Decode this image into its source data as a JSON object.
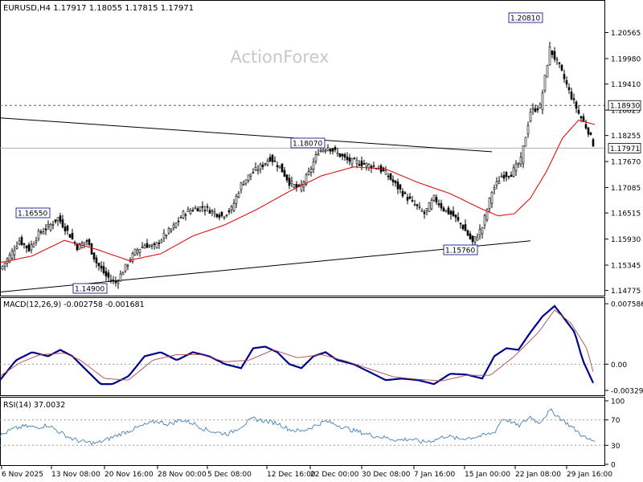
{
  "chart_data": [
    {
      "type": "candlestick",
      "header": "EURUSD,H4  1.17917 1.18055 1.17815 1.17971",
      "watermark": "ActionForex",
      "x_tick_labels": [
        "6 Nov 2025",
        "13 Nov 08:00",
        "20 Nov 16:00",
        "28 Nov 00:00",
        "5 Dec 08:00",
        "12 Dec 16:00",
        "22 Dec 00:00",
        "30 Dec 08:00",
        "7 Jan 16:00",
        "15 Jan 00:00",
        "22 Jan 08:00",
        "29 Jan 16:00"
      ],
      "y_tick_labels": [
        "1.20565",
        "1.19980",
        "1.19410",
        "1.18825",
        "1.18255",
        "1.17670",
        "1.17085",
        "1.16515",
        "1.15930",
        "1.15345",
        "1.14775"
      ],
      "ylim": [
        1.1466,
        1.2126
      ],
      "dashed_level": {
        "value": 1.1893,
        "label": "1.18930"
      },
      "current_price": {
        "value": 1.17971,
        "label": "1.17971"
      },
      "annotations": [
        {
          "label": "1.16550",
          "value": 1.1655
        },
        {
          "label": "1.14900",
          "value": 1.149
        },
        {
          "label": "1.18070",
          "value": 1.1807
        },
        {
          "label": "1.15760",
          "value": 1.1576
        },
        {
          "label": "1.20810",
          "value": 1.2081
        }
      ],
      "trendlines": [
        {
          "name": "upper",
          "from": [
            0,
            1.1865
          ],
          "to": [
            612,
            1.1789
          ]
        },
        {
          "name": "lower",
          "from": [
            0,
            1.1474
          ],
          "to": [
            660,
            1.1589
          ]
        }
      ],
      "close_series_bar_index": [
        0,
        12,
        24,
        36,
        48,
        60,
        72,
        84,
        96,
        108,
        120,
        132,
        144,
        156,
        168,
        180,
        192,
        204,
        216,
        228,
        240,
        252,
        264,
        276,
        288,
        300,
        312,
        324,
        336,
        348,
        360,
        372,
        384,
        396,
        408,
        420,
        432,
        444,
        456,
        468,
        480,
        492,
        504,
        516,
        528,
        540,
        552,
        564,
        576,
        588,
        600,
        612,
        624,
        636,
        648,
        660,
        672,
        684,
        696,
        708,
        720,
        732,
        740
      ],
      "close_series": [
        1.1525,
        1.1555,
        1.159,
        1.157,
        1.1605,
        1.162,
        1.164,
        1.161,
        1.1575,
        1.159,
        1.154,
        1.151,
        1.1495,
        1.153,
        1.1565,
        1.158,
        1.1575,
        1.16,
        1.162,
        1.165,
        1.166,
        1.1665,
        1.1655,
        1.1645,
        1.166,
        1.1715,
        1.174,
        1.1755,
        1.1775,
        1.1755,
        1.172,
        1.1705,
        1.174,
        1.179,
        1.18,
        1.1785,
        1.177,
        1.1765,
        1.176,
        1.1755,
        1.174,
        1.1715,
        1.169,
        1.167,
        1.165,
        1.1685,
        1.166,
        1.1645,
        1.162,
        1.1585,
        1.162,
        1.17,
        1.1735,
        1.174,
        1.177,
        1.188,
        1.189,
        1.202,
        1.198,
        1.1925,
        1.1875,
        1.1835,
        1.1797
      ],
      "ma_series_bar_index": [
        0,
        40,
        80,
        120,
        160,
        200,
        240,
        280,
        320,
        360,
        400,
        440,
        480,
        520,
        560,
        600,
        620,
        640,
        660,
        680,
        700,
        720,
        740
      ],
      "ma_series": [
        1.154,
        1.1555,
        1.159,
        1.157,
        1.1545,
        1.156,
        1.16,
        1.1625,
        1.166,
        1.17,
        1.1735,
        1.1755,
        1.175,
        1.172,
        1.1695,
        1.166,
        1.1645,
        1.165,
        1.1685,
        1.1745,
        1.182,
        1.186,
        1.185
      ]
    },
    {
      "type": "line",
      "label": "MACD(12,26,9) -0.002758 -0.001681",
      "y_tick_labels": [
        "0.007586",
        "0.00",
        "-0.003293"
      ],
      "ylim": [
        -0.0038,
        0.0082
      ],
      "zero_level": 0,
      "series": [
        {
          "name": "MACD",
          "color": "#00008b",
          "x": [
            0,
            20,
            40,
            60,
            75,
            90,
            110,
            125,
            140,
            160,
            180,
            200,
            220,
            240,
            260,
            280,
            300,
            315,
            330,
            345,
            360,
            375,
            390,
            405,
            420,
            440,
            460,
            480,
            500,
            520,
            540,
            560,
            580,
            600,
            615,
            630,
            645,
            660,
            675,
            690,
            700,
            715,
            725,
            740
          ],
          "y": [
            -0.002,
            0.0005,
            0.0015,
            0.001,
            0.0018,
            0.001,
            -0.001,
            -0.0025,
            -0.0025,
            -0.0015,
            0.001,
            0.0015,
            0.0005,
            0.0015,
            0.001,
            0.0,
            -0.0005,
            0.002,
            0.0022,
            0.0015,
            0.0,
            -0.0005,
            0.001,
            0.0015,
            0.0005,
            0.0,
            -0.001,
            -0.002,
            -0.0018,
            -0.002,
            -0.0025,
            -0.0012,
            -0.0013,
            -0.0018,
            0.001,
            0.002,
            0.0018,
            0.004,
            0.006,
            0.0073,
            0.006,
            0.004,
            0.0005,
            -0.0028
          ]
        },
        {
          "name": "Signal",
          "color": "#b04a4a",
          "x": [
            0,
            25,
            50,
            80,
            100,
            130,
            160,
            190,
            220,
            250,
            280,
            310,
            340,
            370,
            400,
            430,
            460,
            490,
            520,
            550,
            580,
            610,
            640,
            670,
            690,
            710,
            730,
            740
          ],
          "y": [
            -0.0015,
            0.0002,
            0.0012,
            0.0014,
            0.0005,
            -0.0018,
            -0.002,
            0.0005,
            0.0012,
            0.0012,
            0.0003,
            0.0005,
            0.0018,
            0.0008,
            0.0012,
            0.0004,
            -0.0006,
            -0.0016,
            -0.0019,
            -0.0021,
            -0.0014,
            -0.0014,
            0.001,
            0.004,
            0.0068,
            0.0052,
            0.002,
            -0.0017
          ]
        }
      ]
    },
    {
      "type": "line",
      "label": "RSI(14) 37.0032",
      "y_tick_labels": [
        "100",
        "70",
        "30",
        "0"
      ],
      "ylim": [
        0,
        100
      ],
      "levels": [
        30,
        70
      ],
      "series": [
        {
          "name": "RSI",
          "color": "#4682b4",
          "x": [
            0,
            15,
            30,
            45,
            60,
            75,
            90,
            105,
            120,
            135,
            150,
            165,
            180,
            195,
            210,
            225,
            240,
            255,
            270,
            285,
            300,
            315,
            330,
            345,
            360,
            375,
            390,
            405,
            420,
            435,
            450,
            465,
            480,
            495,
            510,
            525,
            540,
            555,
            570,
            585,
            600,
            615,
            625,
            635,
            645,
            660,
            670,
            685,
            700,
            715,
            730,
            740
          ],
          "y": [
            45,
            55,
            60,
            58,
            62,
            50,
            40,
            35,
            33,
            40,
            48,
            55,
            62,
            68,
            63,
            70,
            65,
            55,
            50,
            48,
            60,
            72,
            68,
            65,
            55,
            52,
            60,
            68,
            62,
            55,
            50,
            45,
            42,
            38,
            40,
            35,
            38,
            45,
            40,
            42,
            45,
            50,
            72,
            68,
            60,
            75,
            65,
            85,
            70,
            55,
            40,
            37
          ]
        }
      ]
    }
  ]
}
